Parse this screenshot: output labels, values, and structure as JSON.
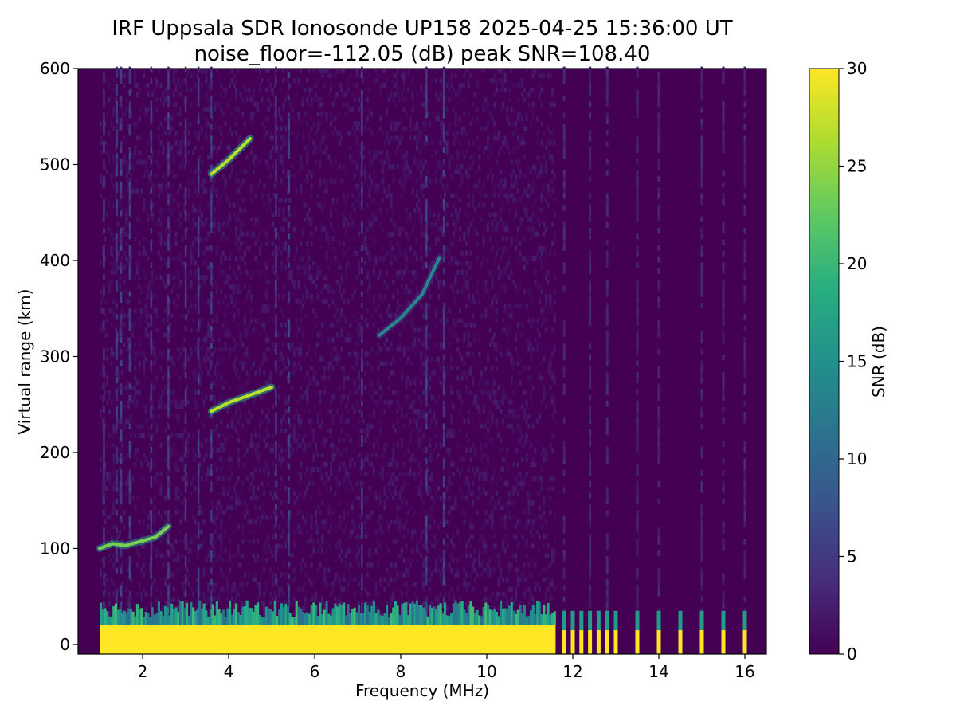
{
  "chart_data": {
    "type": "heatmap",
    "title": "IRF Uppsala SDR Ionosonde UP158 2025-04-25 15:36:00  UT",
    "subtitle": "noise_floor=-112.05 (dB) peak SNR=108.40",
    "xlabel": "Frequency (MHz)",
    "ylabel": "Virtual range (km)",
    "xlim": [
      0.5,
      16.5
    ],
    "ylim": [
      -10,
      600
    ],
    "x_ticks": [
      2,
      4,
      6,
      8,
      10,
      12,
      14,
      16
    ],
    "x_tick_labels": [
      "2",
      "4",
      "6",
      "8",
      "10",
      "12",
      "14",
      "16"
    ],
    "y_ticks": [
      0,
      100,
      200,
      300,
      400,
      500,
      600
    ],
    "y_tick_labels": [
      "0",
      "100",
      "200",
      "300",
      "400",
      "500",
      "600"
    ],
    "colorbar": {
      "label": "SNR (dB)",
      "range": [
        0,
        30
      ],
      "ticks": [
        0,
        5,
        10,
        15,
        20,
        25,
        30
      ],
      "tick_labels": [
        "0",
        "5",
        "10",
        "15",
        "20",
        "25",
        "30"
      ],
      "colormap": "viridis"
    },
    "data_frequency_range_mhz": [
      1.0,
      16.4
    ],
    "ground_clutter": [
      {
        "f_start": 1.0,
        "f_end": 11.6,
        "range_top_km": 20,
        "snr_db": 30
      }
    ],
    "discrete_channels_above_11_6_mhz": [
      11.8,
      12.0,
      12.2,
      12.4,
      12.6,
      12.8,
      13.0,
      13.5,
      14.0,
      14.5,
      15.0,
      15.5,
      16.0
    ],
    "traces": [
      {
        "f_mhz": [
          1.0,
          1.3,
          1.6,
          2.0,
          2.3,
          2.6
        ],
        "range_km": [
          100,
          105,
          103,
          108,
          112,
          123
        ],
        "snr_db": 24
      },
      {
        "f_mhz": [
          3.6,
          4.0,
          4.5,
          5.0
        ],
        "range_km": [
          243,
          252,
          260,
          268
        ],
        "snr_db": 27
      },
      {
        "f_mhz": [
          3.6,
          4.0,
          4.5
        ],
        "range_km": [
          490,
          505,
          527
        ],
        "snr_db": 27
      },
      {
        "f_mhz": [
          7.5,
          8.0,
          8.5,
          8.9
        ],
        "range_km": [
          322,
          340,
          365,
          403
        ],
        "snr_db": 14
      }
    ],
    "vertical_streaks_f_mhz": [
      1.1,
      1.4,
      1.5,
      1.7,
      2.2,
      2.6,
      3.0,
      3.3,
      3.6,
      5.1,
      5.4,
      7.1,
      8.6,
      9.0,
      11.8,
      12.4,
      12.8,
      13.5,
      14.0,
      15.0,
      15.5,
      16.0
    ]
  }
}
